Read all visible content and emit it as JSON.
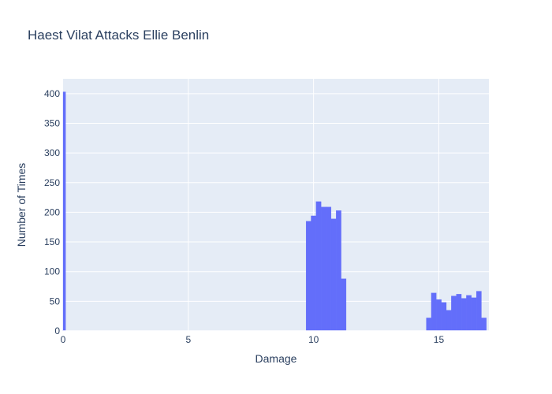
{
  "chart_data": {
    "type": "bar",
    "title": "Haest Vilat Attacks Ellie Benlin",
    "xlabel": "Damage",
    "ylabel": "Number of Times",
    "xlim": [
      0,
      17
    ],
    "ylim": [
      0,
      425
    ],
    "x_ticks": [
      0,
      5,
      10,
      15
    ],
    "y_ticks": [
      0,
      50,
      100,
      150,
      200,
      250,
      300,
      350,
      400
    ],
    "grid": true,
    "legend": "none",
    "bar_color": "#636efa",
    "plot_bg": "#e5ecf6",
    "bin_width": 0.2,
    "bins": [
      {
        "x0": -0.1,
        "x1": 0.1,
        "value": 403
      },
      {
        "x0": 9.7,
        "x1": 9.9,
        "value": 185
      },
      {
        "x0": 9.9,
        "x1": 10.1,
        "value": 194
      },
      {
        "x0": 10.1,
        "x1": 10.3,
        "value": 218
      },
      {
        "x0": 10.3,
        "x1": 10.5,
        "value": 209
      },
      {
        "x0": 10.5,
        "x1": 10.7,
        "value": 209
      },
      {
        "x0": 10.7,
        "x1": 10.9,
        "value": 189
      },
      {
        "x0": 10.9,
        "x1": 11.1,
        "value": 203
      },
      {
        "x0": 11.1,
        "x1": 11.3,
        "value": 88
      },
      {
        "x0": 14.5,
        "x1": 14.7,
        "value": 22
      },
      {
        "x0": 14.7,
        "x1": 14.9,
        "value": 64
      },
      {
        "x0": 14.9,
        "x1": 15.1,
        "value": 53
      },
      {
        "x0": 15.1,
        "x1": 15.3,
        "value": 48
      },
      {
        "x0": 15.3,
        "x1": 15.5,
        "value": 35
      },
      {
        "x0": 15.5,
        "x1": 15.7,
        "value": 59
      },
      {
        "x0": 15.7,
        "x1": 15.9,
        "value": 62
      },
      {
        "x0": 15.9,
        "x1": 16.1,
        "value": 55
      },
      {
        "x0": 16.1,
        "x1": 16.3,
        "value": 60
      },
      {
        "x0": 16.3,
        "x1": 16.5,
        "value": 56
      },
      {
        "x0": 16.5,
        "x1": 16.7,
        "value": 67
      },
      {
        "x0": 16.7,
        "x1": 16.9,
        "value": 22
      }
    ]
  }
}
